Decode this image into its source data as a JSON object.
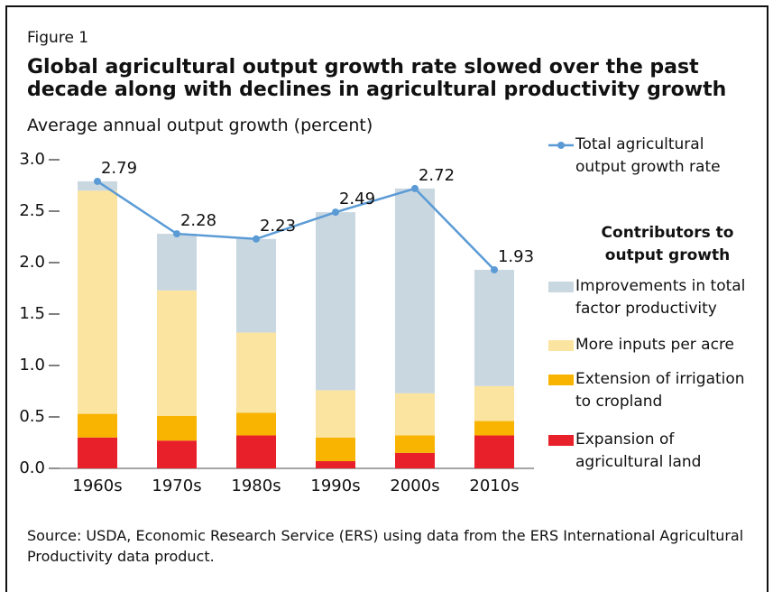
{
  "chart_data": {
    "type": "bar",
    "figure_label": "Figure 1",
    "title": "Global agricultural output growth rate slowed over the past decade along with declines in agricultural productivity growth",
    "y_axis_label": "Average annual output growth (percent)",
    "categories": [
      "1960s",
      "1970s",
      "1980s",
      "1990s",
      "2000s",
      "2010s"
    ],
    "stacked": true,
    "series": [
      {
        "name": "Expansion of agricultural land",
        "color": "#e8202a",
        "values": [
          0.3,
          0.27,
          0.32,
          0.07,
          0.15,
          0.32
        ]
      },
      {
        "name": "Extension of irrigation to cropland",
        "color": "#f8b400",
        "values": [
          0.23,
          0.24,
          0.22,
          0.23,
          0.17,
          0.14
        ]
      },
      {
        "name": "More inputs per acre",
        "color": "#fbe3a0",
        "values": [
          2.17,
          1.22,
          0.78,
          0.46,
          0.41,
          0.34
        ]
      },
      {
        "name": "Improvements in total factor productivity",
        "color": "#c9d7e1",
        "values": [
          0.09,
          0.55,
          0.91,
          1.73,
          1.99,
          1.13
        ]
      }
    ],
    "line": {
      "name": "Total agricultural output growth rate",
      "color": "#5b9bd5",
      "values": [
        2.79,
        2.28,
        2.23,
        2.49,
        2.72,
        1.93
      ]
    },
    "legend_title": "Contributors to output growth",
    "ylim": [
      0,
      3
    ],
    "yticks": [
      {
        "value": 0,
        "label": "0.0"
      },
      0.5,
      {
        "value": 1,
        "label": "1.0"
      },
      1.5,
      {
        "value": 2,
        "label": "2.0"
      },
      2.5,
      {
        "value": 3,
        "label": "3.0"
      }
    ],
    "source": "Source: USDA, Economic Research Service (ERS) using data from the ERS International Agricultural Productivity data product."
  }
}
